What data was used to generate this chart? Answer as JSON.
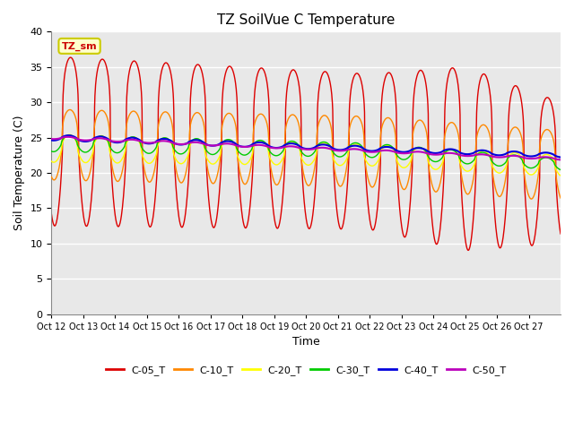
{
  "title": "TZ SoilVue C Temperature",
  "xlabel": "Time",
  "ylabel": "Soil Temperature (C)",
  "ylim": [
    0,
    40
  ],
  "yticks": [
    0,
    5,
    10,
    15,
    20,
    25,
    30,
    35,
    40
  ],
  "x_tick_labels": [
    "Oct 12",
    "Oct 13",
    "Oct 14",
    "Oct 15",
    "Oct 16",
    "Oct 17",
    "Oct 18",
    "Oct 19",
    "Oct 20",
    "Oct 21",
    "Oct 22",
    "Oct 23",
    "Oct 24",
    "Oct 25",
    "Oct 26",
    "Oct 27"
  ],
  "series": [
    {
      "name": "C-05_T",
      "color": "#dd0000",
      "linewidth": 1.0
    },
    {
      "name": "C-10_T",
      "color": "#ff8800",
      "linewidth": 1.0
    },
    {
      "name": "C-20_T",
      "color": "#ffff00",
      "linewidth": 1.0
    },
    {
      "name": "C-30_T",
      "color": "#00cc00",
      "linewidth": 1.0
    },
    {
      "name": "C-40_T",
      "color": "#0000dd",
      "linewidth": 1.5
    },
    {
      "name": "C-50_T",
      "color": "#bb00bb",
      "linewidth": 1.5
    }
  ],
  "bg_color": "#e8e8e8",
  "fig_bg_color": "#ffffff",
  "grid_color": "#ffffff",
  "annotation_box_color": "#ffffcc",
  "annotation_box_edge": "#cccc00",
  "annotation_text": "TZ_sm",
  "annotation_text_color": "#cc0000"
}
